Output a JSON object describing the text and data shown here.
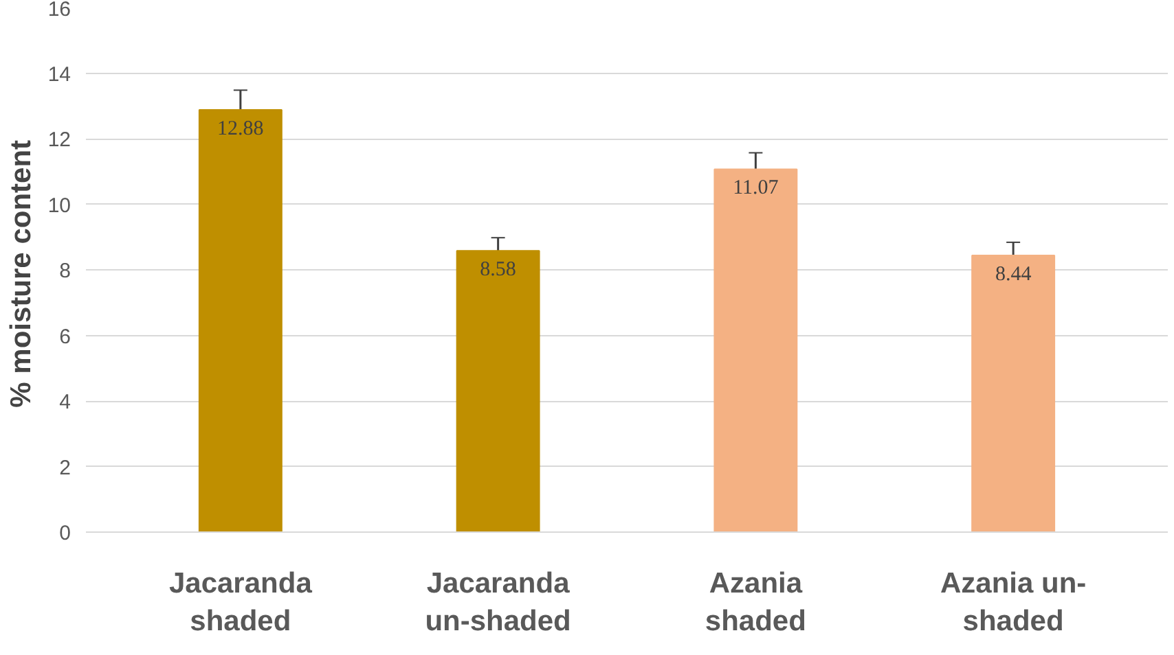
{
  "chart_data": {
    "type": "bar",
    "ylabel": "%  moisture content",
    "categories": [
      "Jacaranda shaded",
      "Jacaranda un-shaded",
      "Azania shaded",
      "Azania un-shaded"
    ],
    "values": [
      12.88,
      8.58,
      11.07,
      8.44
    ],
    "colors": [
      "#bf8f00",
      "#bf8f00",
      "#f4b183",
      "#f4b183"
    ],
    "errors": [
      0.6,
      0.4,
      0.5,
      0.4
    ],
    "ylim": [
      0,
      16
    ],
    "yticks": [
      0,
      2,
      4,
      6,
      8,
      10,
      12,
      14,
      16
    ],
    "grid": "y",
    "data_labels": true
  }
}
